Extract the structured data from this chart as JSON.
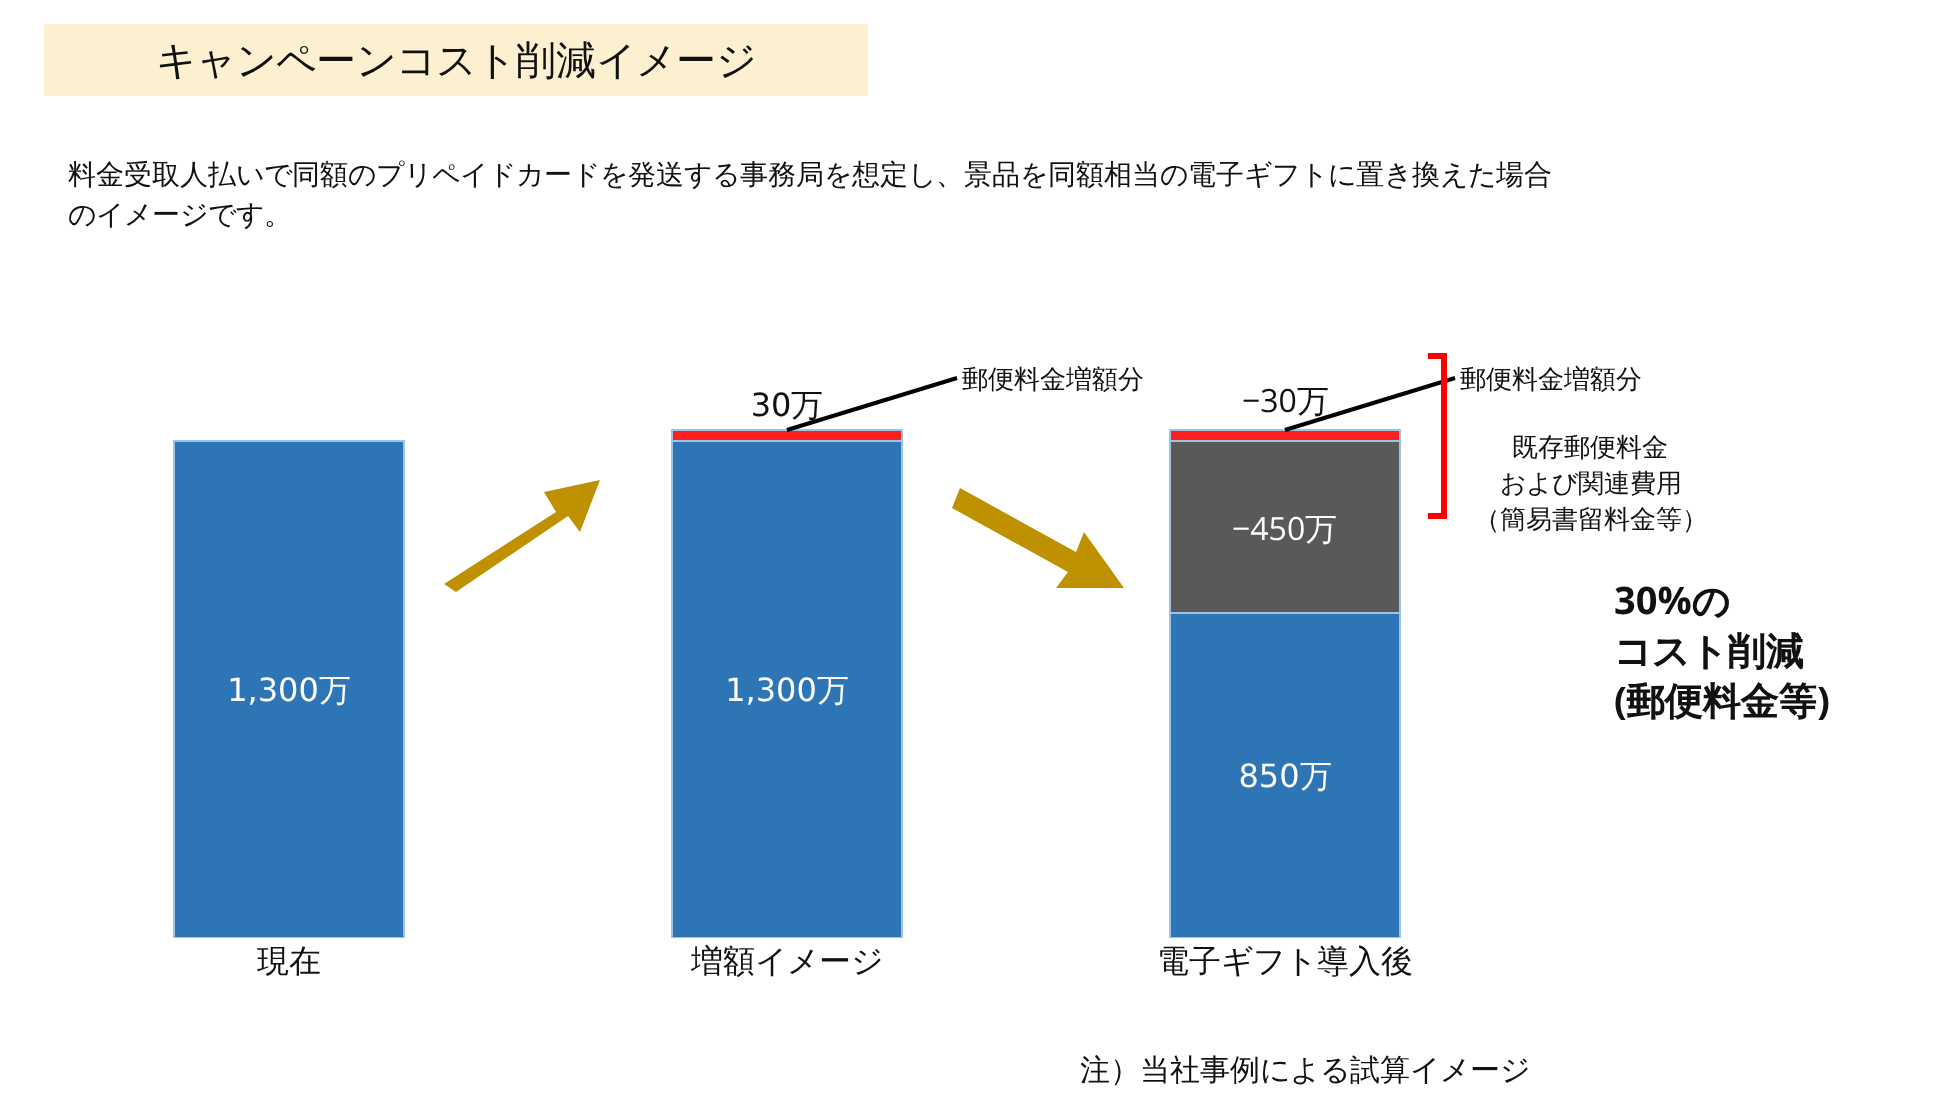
{
  "chart_data": {
    "type": "bar",
    "title": "キャンペーンコスト削減イメージ",
    "subtitle": "料金受取人払いで同額のプリペイドカードを発送する事務局を想定し、景品を同額相当の電子ギフトに置き換えた場合のイメージです。",
    "categories": [
      "現在",
      "増額イメージ",
      "電子ギフト導入後"
    ],
    "stacked": true,
    "series": [
      {
        "color": "#2e75b6",
        "values": [
          1300,
          1300,
          850
        ],
        "value_labels": [
          "1,300万",
          "1,300万",
          "850万"
        ]
      },
      {
        "color": "#595959",
        "values": [
          null,
          null,
          450
        ]
      },
      {
        "color": "#ff2020",
        "values": [
          null,
          30,
          30
        ],
        "value_labels": [
          null,
          "30万",
          null
        ]
      }
    ],
    "annotations": [
      {
        "text": "−450万",
        "x": "電子ギフト導入後",
        "y": 1300
      },
      {
        "text": "−30万",
        "x": "電子ギフト導入後",
        "y": 1315
      },
      {
        "text": "郵便料金増額分",
        "x": "増額イメージ",
        "y": 1330
      },
      {
        "text": "郵便料金増額分",
        "x": "電子ギフト導入後",
        "y": 1330
      },
      "既存郵便料金",
      "および関連費用",
      "（簡易書留料金等）",
      "30%の",
      "コスト削減",
      "(郵便料金等)",
      "注）当社事例による試算イメージ"
    ],
    "tick_labels": "x"
  }
}
